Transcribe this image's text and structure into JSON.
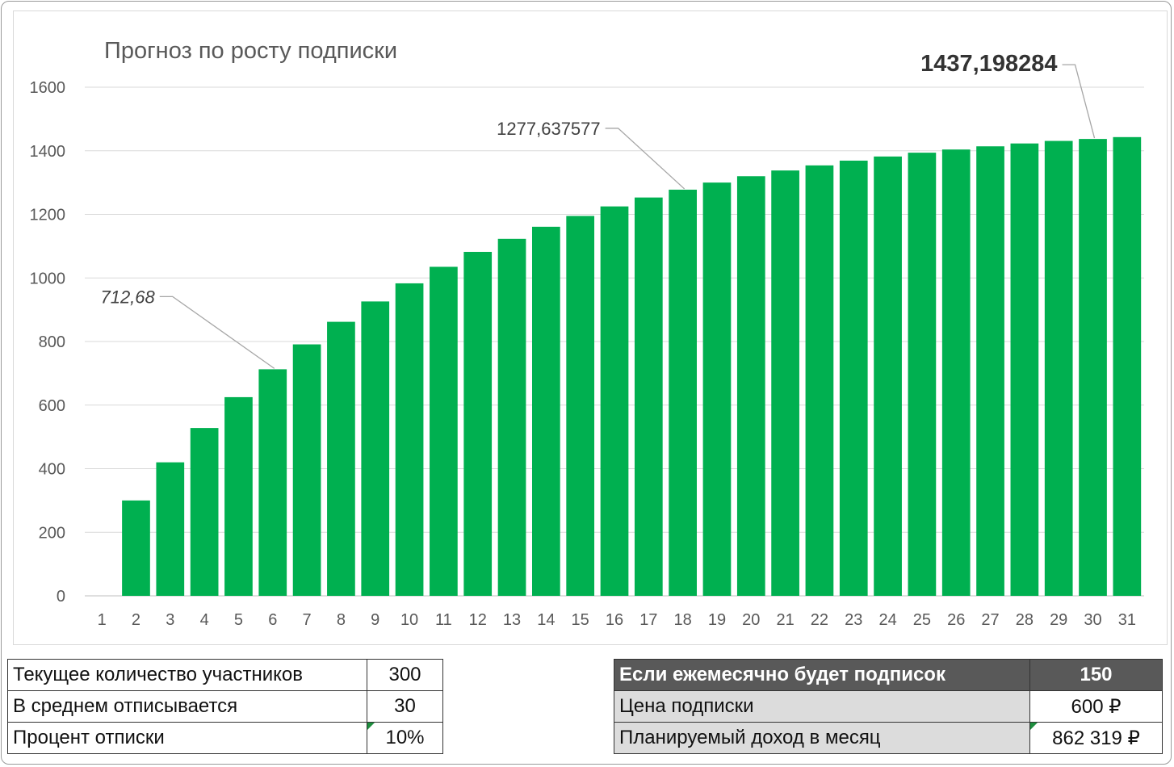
{
  "chart_data": {
    "type": "bar",
    "title": "Прогноз по росту подписки",
    "xlabel": "",
    "ylabel": "",
    "ylim": [
      0,
      1600
    ],
    "yticks": [
      0,
      200,
      400,
      600,
      800,
      1000,
      1200,
      1400,
      1600
    ],
    "grid": true,
    "bar_color": "#00b050",
    "categories": [
      "1",
      "2",
      "3",
      "4",
      "5",
      "6",
      "7",
      "8",
      "9",
      "10",
      "11",
      "12",
      "13",
      "14",
      "15",
      "16",
      "17",
      "18",
      "19",
      "20",
      "21",
      "22",
      "23",
      "24",
      "25",
      "26",
      "27",
      "28",
      "29",
      "30",
      "31"
    ],
    "values": [
      null,
      300,
      420,
      528,
      625,
      712.68,
      791,
      862,
      926,
      983,
      1035,
      1082,
      1123,
      1161,
      1195,
      1225,
      1253,
      1277.637577,
      1300,
      1320,
      1338,
      1354,
      1369,
      1382,
      1394,
      1404,
      1414,
      1423,
      1431,
      1437.198284,
      1443
    ],
    "annotations": [
      {
        "category": "6",
        "text": "712,68",
        "style": "italic"
      },
      {
        "category": "18",
        "text": "1277,637577",
        "style": "normal"
      },
      {
        "category": "30",
        "text": "1437,198284",
        "style": "bold"
      }
    ]
  },
  "left_table": [
    {
      "label": "Текущее количество участников",
      "value": "300"
    },
    {
      "label": "В среднем отписывается",
      "value": "30"
    },
    {
      "label": "Процент отписки",
      "value": "10%"
    }
  ],
  "right_table": {
    "header": {
      "label": "Если ежемесячно будет подписок",
      "value": "150"
    },
    "rows": [
      {
        "label": "Цена подписки",
        "value": "600 ₽"
      },
      {
        "label": "Планируемый доход в месяц",
        "value": "862 319 ₽"
      }
    ]
  }
}
